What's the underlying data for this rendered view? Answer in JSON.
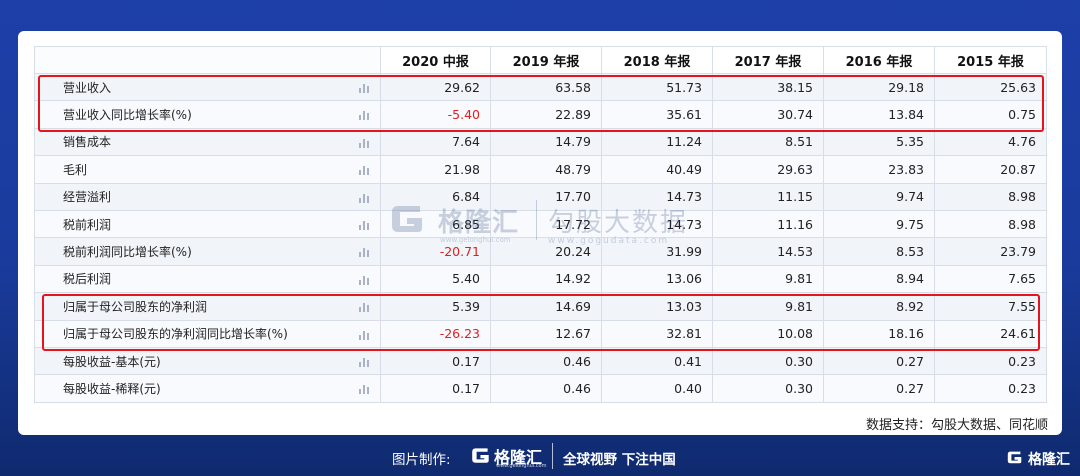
{
  "table": {
    "headers": [
      "",
      "2020 中报",
      "2019 年报",
      "2018 年报",
      "2017 年报",
      "2016 年报",
      "2015 年报"
    ],
    "rows": [
      {
        "label": "营业收入",
        "values": [
          "29.62",
          "63.58",
          "51.73",
          "38.15",
          "29.18",
          "25.63"
        ]
      },
      {
        "label": "营业收入同比增长率(%)",
        "values": [
          "-5.40",
          "22.89",
          "35.61",
          "30.74",
          "13.84",
          "0.75"
        ]
      },
      {
        "label": "销售成本",
        "values": [
          "7.64",
          "14.79",
          "11.24",
          "8.51",
          "5.35",
          "4.76"
        ]
      },
      {
        "label": "毛利",
        "values": [
          "21.98",
          "48.79",
          "40.49",
          "29.63",
          "23.83",
          "20.87"
        ]
      },
      {
        "label": "经营溢利",
        "values": [
          "6.84",
          "17.70",
          "14.73",
          "11.15",
          "9.74",
          "8.98"
        ]
      },
      {
        "label": "税前利润",
        "values": [
          "6.85",
          "17.72",
          "14.73",
          "11.16",
          "9.75",
          "8.98"
        ]
      },
      {
        "label": "税前利润同比增长率(%)",
        "values": [
          "-20.71",
          "20.24",
          "31.99",
          "14.53",
          "8.53",
          "23.79"
        ]
      },
      {
        "label": "税后利润",
        "values": [
          "5.40",
          "14.92",
          "13.06",
          "9.81",
          "8.94",
          "7.65"
        ]
      },
      {
        "label": "归属于母公司股东的净利润",
        "values": [
          "5.39",
          "14.69",
          "13.03",
          "9.81",
          "8.92",
          "7.55"
        ]
      },
      {
        "label": "归属于母公司股东的净利润同比增长率(%)",
        "values": [
          "-26.23",
          "12.67",
          "32.81",
          "10.08",
          "18.16",
          "24.61"
        ]
      },
      {
        "label": "每股收益-基本(元)",
        "values": [
          "0.17",
          "0.46",
          "0.41",
          "0.30",
          "0.27",
          "0.23"
        ]
      },
      {
        "label": "每股收益-稀释(元)",
        "values": [
          "0.17",
          "0.46",
          "0.40",
          "0.30",
          "0.27",
          "0.23"
        ]
      }
    ]
  },
  "watermark": {
    "brand": "格隆汇",
    "brand_url": "www.gelonghui.com",
    "partner": "勾股大数据",
    "partner_url": "www.gogudata.com"
  },
  "source_text": "数据支持：勾股大数据、同花顺",
  "footer": {
    "made_by_label": "图片制作:",
    "brand": "格隆汇",
    "brand_url": "www.gelonghui.com",
    "slogan": "全球视野 下注中国",
    "corner_brand": "格隆汇"
  },
  "colors": {
    "background": "#1d3fa8",
    "negative": "#e02020",
    "highlight_box": "#e8141c"
  },
  "icons": {
    "row_chart": "bar-chart-icon",
    "logo": "gelonghui-g-logo-icon"
  }
}
